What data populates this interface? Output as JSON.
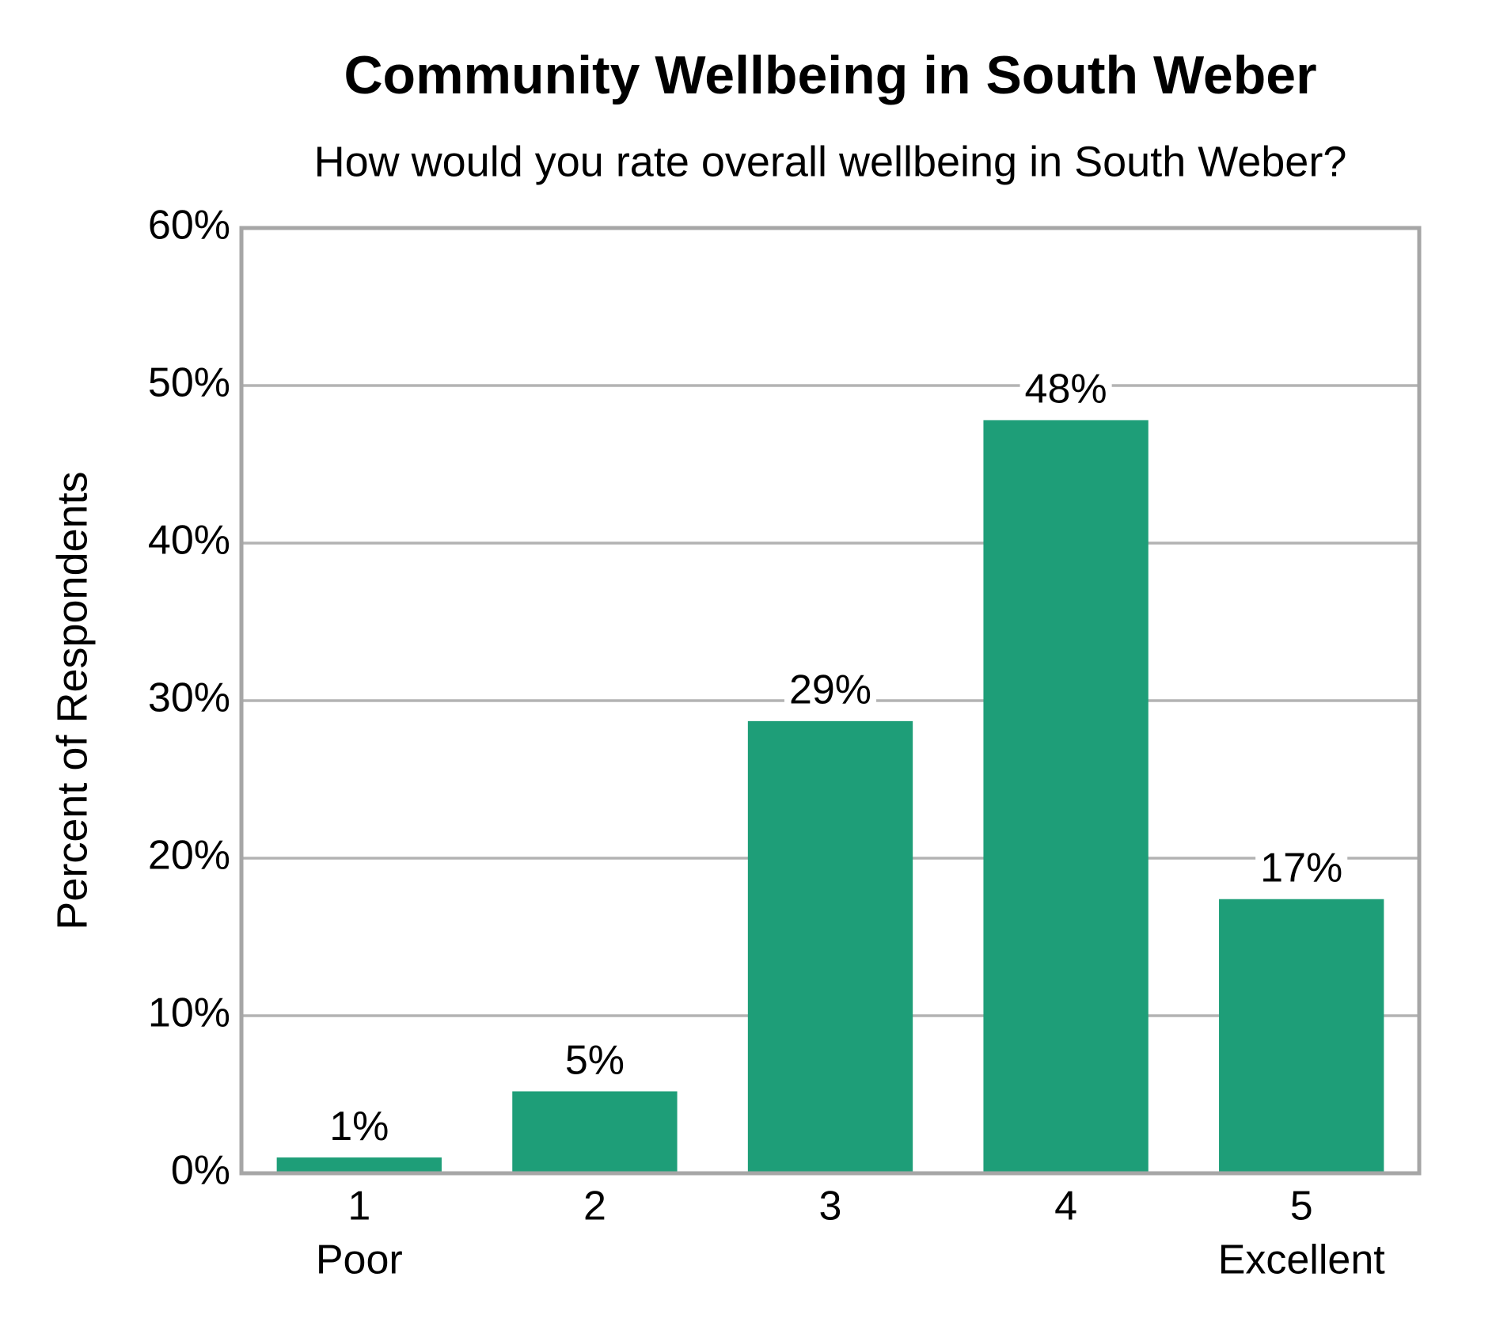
{
  "chart_data": {
    "type": "bar",
    "title": "Community Wellbeing in South Weber",
    "subtitle": "How would you rate overall wellbeing in South Weber?",
    "y_label": "Percent of Respondents",
    "categories": [
      "1",
      "2",
      "3",
      "4",
      "5"
    ],
    "category_sublabels": [
      "Poor",
      null,
      null,
      null,
      "Excellent"
    ],
    "values": [
      1,
      5.2,
      28.7,
      47.8,
      17.4
    ],
    "value_labels": [
      "1%",
      "5%",
      "29%",
      "48%",
      "17%"
    ],
    "color": "#1e9e78",
    "ylim": [
      0,
      60
    ],
    "yticks": [
      {
        "value": 0,
        "label": "0%"
      },
      {
        "value": 10,
        "label": "10%"
      },
      {
        "value": 20,
        "label": "20%"
      },
      {
        "value": 30,
        "label": "30%"
      },
      {
        "value": 40,
        "label": "40%"
      },
      {
        "value": 50,
        "label": "50%"
      },
      {
        "value": 60,
        "label": "60%"
      }
    ],
    "grid": true
  }
}
